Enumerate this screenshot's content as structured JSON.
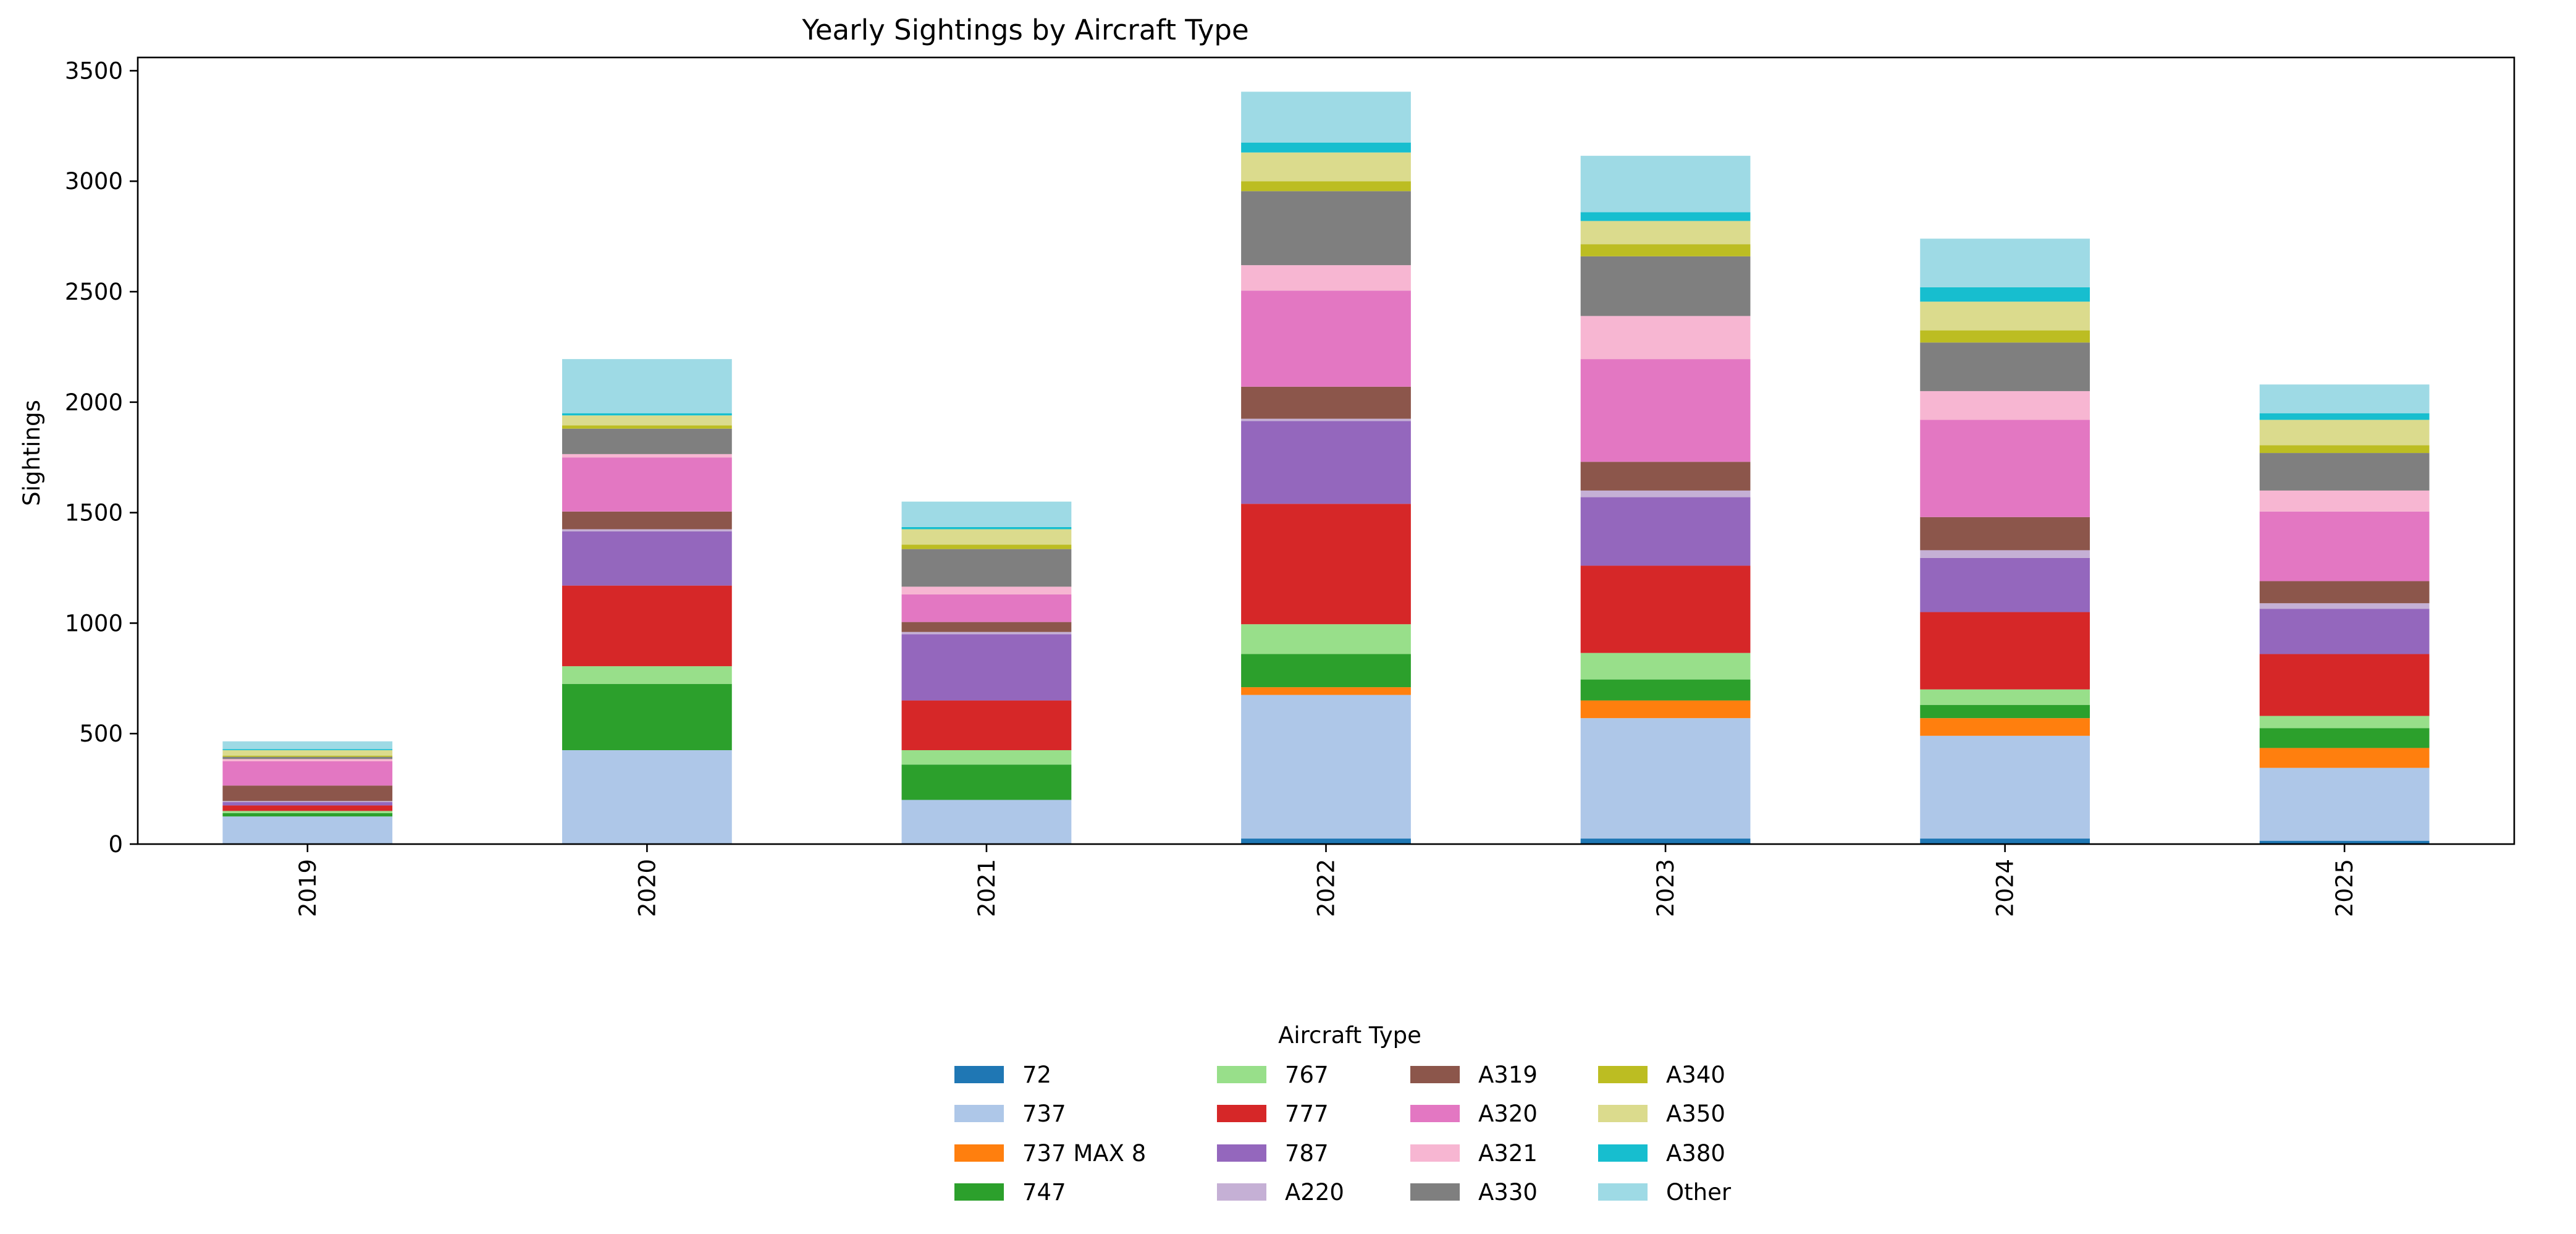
{
  "chart_data": {
    "type": "bar",
    "stacked": true,
    "title": "Yearly Sightings by Aircraft Type",
    "xlabel": "",
    "ylabel": "Sightings",
    "ylim": [
      0,
      3560
    ],
    "yticks": [
      0,
      500,
      1000,
      1500,
      2000,
      2500,
      3000,
      3500
    ],
    "grid": false,
    "legend": {
      "title": "Aircraft Type",
      "placement": "bottom-center"
    },
    "categories": [
      "2019",
      "2020",
      "2021",
      "2022",
      "2023",
      "2024",
      "2025"
    ],
    "series": [
      {
        "name": "72",
        "color": "#1f77b4",
        "values": [
          0,
          0,
          0,
          25,
          25,
          25,
          15
        ]
      },
      {
        "name": "737",
        "color": "#aec7e8",
        "values": [
          125,
          425,
          200,
          650,
          545,
          465,
          330
        ]
      },
      {
        "name": "737 MAX 8",
        "color": "#ff7f0e",
        "values": [
          0,
          0,
          0,
          35,
          80,
          80,
          90
        ]
      },
      {
        "name": "747",
        "color": "#2ca02c",
        "values": [
          15,
          300,
          160,
          150,
          95,
          60,
          90
        ]
      },
      {
        "name": "767",
        "color": "#98df8a",
        "values": [
          10,
          80,
          65,
          135,
          120,
          70,
          55
        ]
      },
      {
        "name": "777",
        "color": "#d62728",
        "values": [
          25,
          365,
          225,
          545,
          395,
          350,
          280
        ]
      },
      {
        "name": "787",
        "color": "#9467bd",
        "values": [
          15,
          245,
          300,
          375,
          310,
          245,
          205
        ]
      },
      {
        "name": "A220",
        "color": "#c5b0d5",
        "values": [
          5,
          10,
          10,
          10,
          30,
          35,
          25
        ]
      },
      {
        "name": "A319",
        "color": "#8c564b",
        "values": [
          70,
          80,
          45,
          145,
          130,
          150,
          100
        ]
      },
      {
        "name": "A320",
        "color": "#e377c2",
        "values": [
          110,
          245,
          125,
          435,
          465,
          440,
          315
        ]
      },
      {
        "name": "A321",
        "color": "#f7b6d2",
        "values": [
          10,
          15,
          35,
          115,
          195,
          130,
          95
        ]
      },
      {
        "name": "A330",
        "color": "#7f7f7f",
        "values": [
          10,
          115,
          170,
          335,
          270,
          220,
          170
        ]
      },
      {
        "name": "A340",
        "color": "#bcbd22",
        "values": [
          5,
          15,
          20,
          45,
          55,
          55,
          35
        ]
      },
      {
        "name": "A350",
        "color": "#dbdb8d",
        "values": [
          25,
          45,
          70,
          130,
          105,
          130,
          115
        ]
      },
      {
        "name": "A380",
        "color": "#17becf",
        "values": [
          5,
          10,
          10,
          45,
          40,
          65,
          30
        ]
      },
      {
        "name": "Other",
        "color": "#9edae5",
        "values": [
          35,
          245,
          115,
          230,
          255,
          220,
          130
        ]
      }
    ]
  }
}
